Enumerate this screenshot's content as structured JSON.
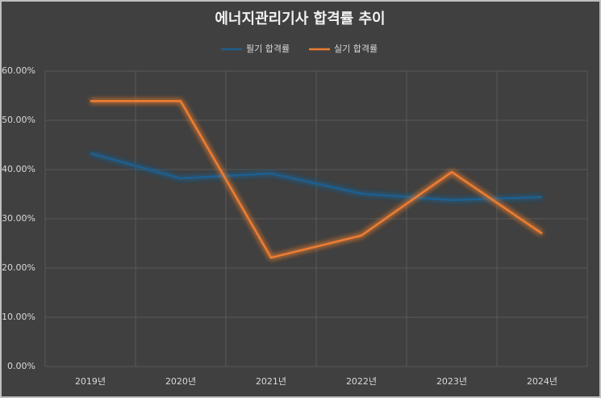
{
  "chart_data": {
    "type": "line",
    "title": "에너지관리기사 합격률 추이",
    "categories": [
      "2019년",
      "2020년",
      "2021년",
      "2022년",
      "2023년",
      "2024년"
    ],
    "series": [
      {
        "name": "필기 합격률",
        "color": "#1f5f8f",
        "values": [
          43.3,
          38.2,
          39.2,
          35.1,
          33.8,
          34.4
        ]
      },
      {
        "name": "실기 합격률",
        "color": "#ed7d31",
        "values": [
          53.9,
          53.9,
          22.1,
          26.6,
          39.5,
          27.0
        ]
      }
    ],
    "ylim": [
      0,
      60
    ],
    "yticks": [
      {
        "value": 0,
        "label": "0.00%"
      },
      {
        "value": 10,
        "label": "10.00%"
      },
      {
        "value": 20,
        "label": "20.00%"
      },
      {
        "value": 30,
        "label": "30.00%"
      },
      {
        "value": 40,
        "label": "40.00%"
      },
      {
        "value": 50,
        "label": "50.00%"
      },
      {
        "value": 60,
        "label": "60.00%"
      }
    ],
    "grid": true,
    "legend": "top"
  }
}
